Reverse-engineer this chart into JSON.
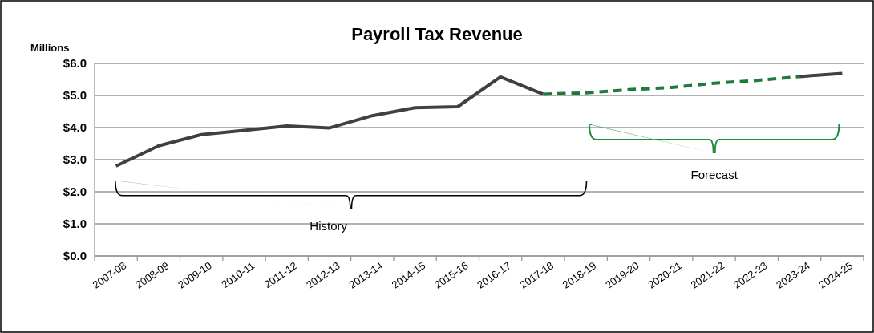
{
  "chart_data": {
    "type": "line",
    "title": "Payroll Tax Revenue",
    "ylabel": "Millions",
    "categories": [
      "2007-08",
      "2008-09",
      "2009-10",
      "2010-11",
      "2011-12",
      "2012-13",
      "2013-14",
      "2014-15",
      "2015-16",
      "2016-17",
      "2017-18",
      "2018-19",
      "2019-20",
      "2020-21",
      "2021-22",
      "2022-23",
      "2023-24",
      "2024-25"
    ],
    "series": [
      {
        "color": "#404040",
        "line_style": "solid",
        "values": [
          2.8,
          3.43,
          3.78,
          3.91,
          4.05,
          3.99,
          4.37,
          4.62,
          4.65,
          5.58,
          5.04,
          null,
          null,
          null,
          null,
          null,
          5.59,
          5.69
        ]
      },
      {
        "color": "#1e7b3a",
        "line_style": "dashed",
        "values": [
          null,
          null,
          null,
          null,
          null,
          null,
          null,
          null,
          null,
          null,
          5.04,
          5.08,
          5.18,
          5.25,
          5.38,
          5.47,
          5.59,
          null
        ]
      }
    ],
    "ylim": [
      0,
      6
    ],
    "yticks": [
      {
        "value": 0,
        "label": "$0.0"
      },
      {
        "value": 1,
        "label": "$1.0"
      },
      {
        "value": 2,
        "label": "$2.0"
      },
      {
        "value": 3,
        "label": "$3.0"
      },
      {
        "value": 4,
        "label": "$4.0"
      },
      {
        "value": 5,
        "label": "$5.0"
      },
      {
        "value": 6,
        "label": "$6.0"
      }
    ],
    "grid": "y",
    "annotations": [
      "History",
      "Forecast"
    ]
  }
}
